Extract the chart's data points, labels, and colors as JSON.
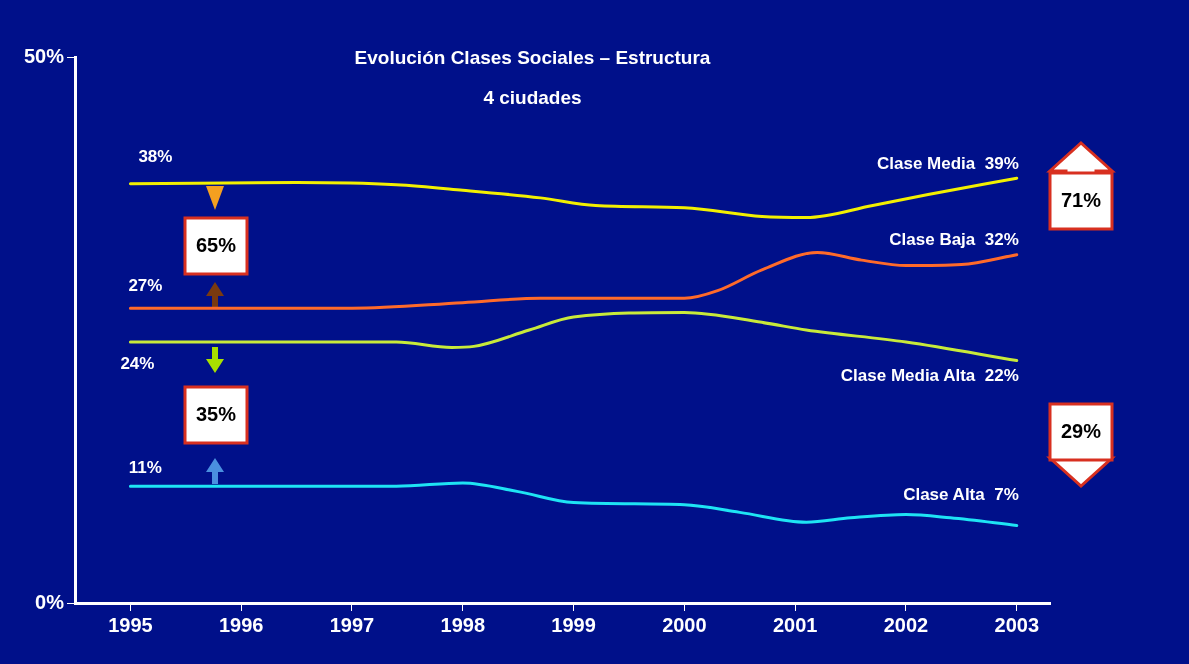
{
  "chart_data": {
    "type": "line",
    "title": "Evolución Clases Sociales – Estructura",
    "subtitle": "4 ciudades",
    "xlim": [
      1994.5,
      2003.3
    ],
    "xticks": [
      1995,
      1996,
      1997,
      1998,
      1999,
      2000,
      2001,
      2002,
      2003
    ],
    "ylim": [
      0,
      50
    ],
    "yticks": [
      {
        "value": 0,
        "label": "0%"
      },
      {
        "value": 50,
        "label": "50%"
      }
    ],
    "grid": false,
    "legend": false,
    "marker": "none",
    "line_style": "solid",
    "series": [
      {
        "name": "Clase Media",
        "color": "#f2f000",
        "x": [
          1995,
          1996.5,
          1997.4,
          1998,
          1998.7,
          1999.2,
          2000,
          2000.7,
          2001.1,
          2001.7,
          2002.2,
          2003
        ],
        "values": [
          38.4,
          38.5,
          38.3,
          37.8,
          37.1,
          36.4,
          36.2,
          35.4,
          35.3,
          36.4,
          37.4,
          38.9
        ],
        "value_labels": [
          "38%",
          null,
          null,
          null,
          null,
          null,
          null,
          null,
          null,
          null,
          null,
          "39%"
        ]
      },
      {
        "name": "Clase Baja",
        "color": "#ff6a2a",
        "x": [
          1995,
          1997,
          1998,
          1998.7,
          2000,
          2000.3,
          2000.7,
          2001.2,
          2001.6,
          2002,
          2002.5,
          2003
        ],
        "values": [
          27.0,
          27.0,
          27.5,
          27.9,
          27.9,
          28.6,
          30.5,
          32.1,
          31.4,
          30.9,
          31.0,
          31.9
        ],
        "value_labels": [
          "27%",
          null,
          null,
          null,
          null,
          null,
          null,
          null,
          null,
          null,
          null,
          "32%"
        ]
      },
      {
        "name": "Clase Media Alta",
        "color": "#c8ea3a",
        "x": [
          1995,
          1997.4,
          1997.9,
          1998.1,
          1998.6,
          1999,
          2000,
          2000.7,
          2001.1,
          2002,
          2003
        ],
        "values": [
          23.9,
          23.9,
          23.4,
          23.5,
          25.0,
          26.2,
          26.6,
          25.7,
          25.0,
          23.9,
          22.2
        ],
        "value_labels": [
          "24%",
          null,
          null,
          null,
          null,
          null,
          null,
          null,
          null,
          null,
          "22%"
        ]
      },
      {
        "name": "Clase Alta",
        "color": "#1ee4f4",
        "x": [
          1995,
          1997.4,
          1998,
          1998.5,
          1999,
          2000,
          2000.5,
          2001.1,
          2001.5,
          2002,
          2002.4,
          2003
        ],
        "values": [
          10.7,
          10.7,
          11.0,
          10.2,
          9.2,
          9.0,
          8.3,
          7.4,
          7.8,
          8.1,
          7.8,
          7.1
        ],
        "value_labels": [
          "11%",
          null,
          null,
          null,
          null,
          null,
          null,
          null,
          null,
          null,
          null,
          "7%"
        ]
      }
    ],
    "annotations": [
      "65%",
      "35%",
      "71%",
      "29%"
    ]
  }
}
